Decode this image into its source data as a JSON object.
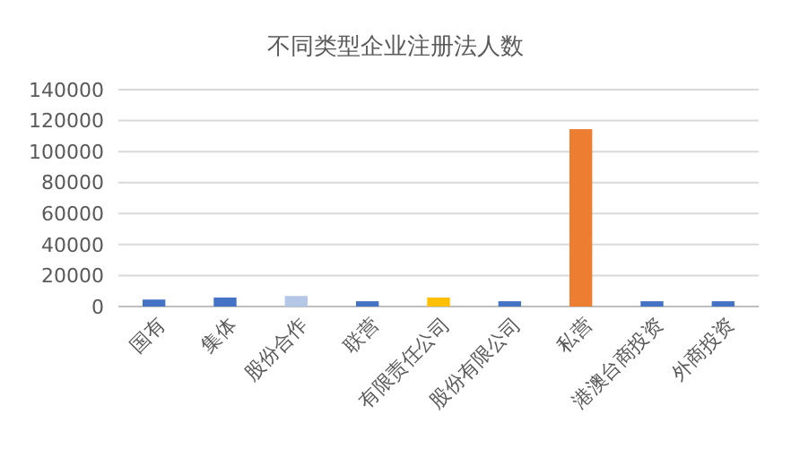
{
  "chart_data": {
    "type": "bar",
    "title": "不同类型企业注册法人数",
    "categories": [
      "国有",
      "集体",
      "股份合作",
      "联营",
      "有限责任公司",
      "股份有限公司",
      "私营",
      "港澳台商投资",
      "外商投资"
    ],
    "values": [
      4500,
      5800,
      6800,
      3400,
      5800,
      3400,
      114500,
      3400,
      3400
    ],
    "colors": [
      "#4472c4",
      "#4472c4",
      "#b4c7e7",
      "#4472c4",
      "#ffc000",
      "#4472c4",
      "#ed7d31",
      "#4472c4",
      "#4472c4"
    ],
    "ylim": [
      0,
      140000
    ],
    "yticks": [
      0,
      20000,
      40000,
      60000,
      80000,
      100000,
      120000,
      140000
    ],
    "grid": "y"
  }
}
